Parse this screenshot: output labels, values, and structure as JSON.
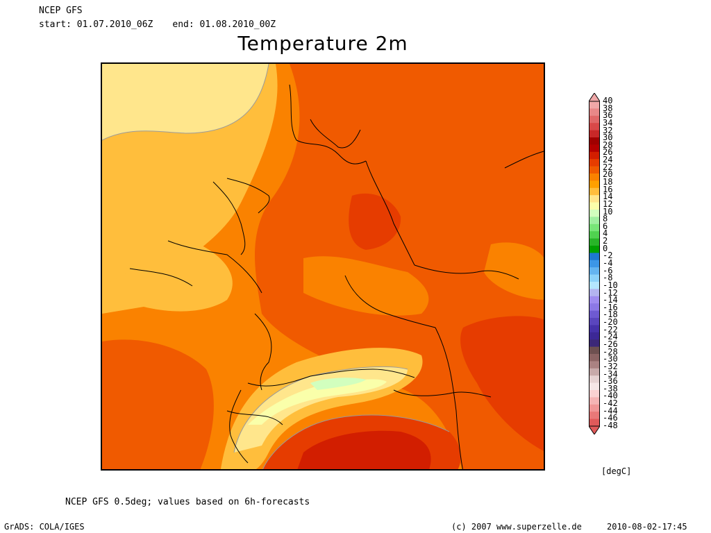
{
  "header": {
    "model": "NCEP GFS",
    "start": "start: 01.07.2010_06Z",
    "end": "end: 01.08.2010_00Z"
  },
  "title": "Temperature 2m",
  "legend": {
    "unit": "[degC]",
    "ticks": [
      "40",
      "38",
      "36",
      "34",
      "32",
      "30",
      "28",
      "26",
      "24",
      "22",
      "20",
      "18",
      "16",
      "14",
      "12",
      "10",
      "8",
      "6",
      "4",
      "2",
      "0",
      "-2",
      "-4",
      "-6",
      "-8",
      "-10",
      "-12",
      "-14",
      "-16",
      "-18",
      "-20",
      "-22",
      "-24",
      "-26",
      "-28",
      "-30",
      "-32",
      "-34",
      "-36",
      "-38",
      "-40",
      "-42",
      "-44",
      "-46",
      "-48"
    ],
    "colors": [
      "#f0a8a8",
      "#e88888",
      "#e06868",
      "#d84848",
      "#c82828",
      "#a00000",
      "#b40000",
      "#d21e00",
      "#e63c00",
      "#f05a00",
      "#fa8200",
      "#ffa000",
      "#ffbe3c",
      "#ffe68c",
      "#faffaa",
      "#d2ffbe",
      "#a0f0a0",
      "#78e678",
      "#50d250",
      "#28b428",
      "#00a000",
      "#1e78d2",
      "#3c96e6",
      "#64b4f0",
      "#8cd2fa",
      "#b4e6ff",
      "#b4b4f0",
      "#a08cf0",
      "#8c78e6",
      "#6e5ad2",
      "#5a46be",
      "#4632aa",
      "#3c2896",
      "#3c2878",
      "#6e5050",
      "#8c6464",
      "#aa8282",
      "#c8aaaa",
      "#e6d2d2",
      "#f5e6e6",
      "#fad2d2",
      "#f5b4b4",
      "#f09696",
      "#e87878",
      "#e05a5a"
    ]
  },
  "footer": {
    "source": "NCEP GFS 0.5deg; values based on 6h-forecasts",
    "software": "GrADS: COLA/IGES",
    "copyright": "(c) 2007 www.superzelle.de",
    "valid_time": "2010-08-02-17:45"
  }
}
